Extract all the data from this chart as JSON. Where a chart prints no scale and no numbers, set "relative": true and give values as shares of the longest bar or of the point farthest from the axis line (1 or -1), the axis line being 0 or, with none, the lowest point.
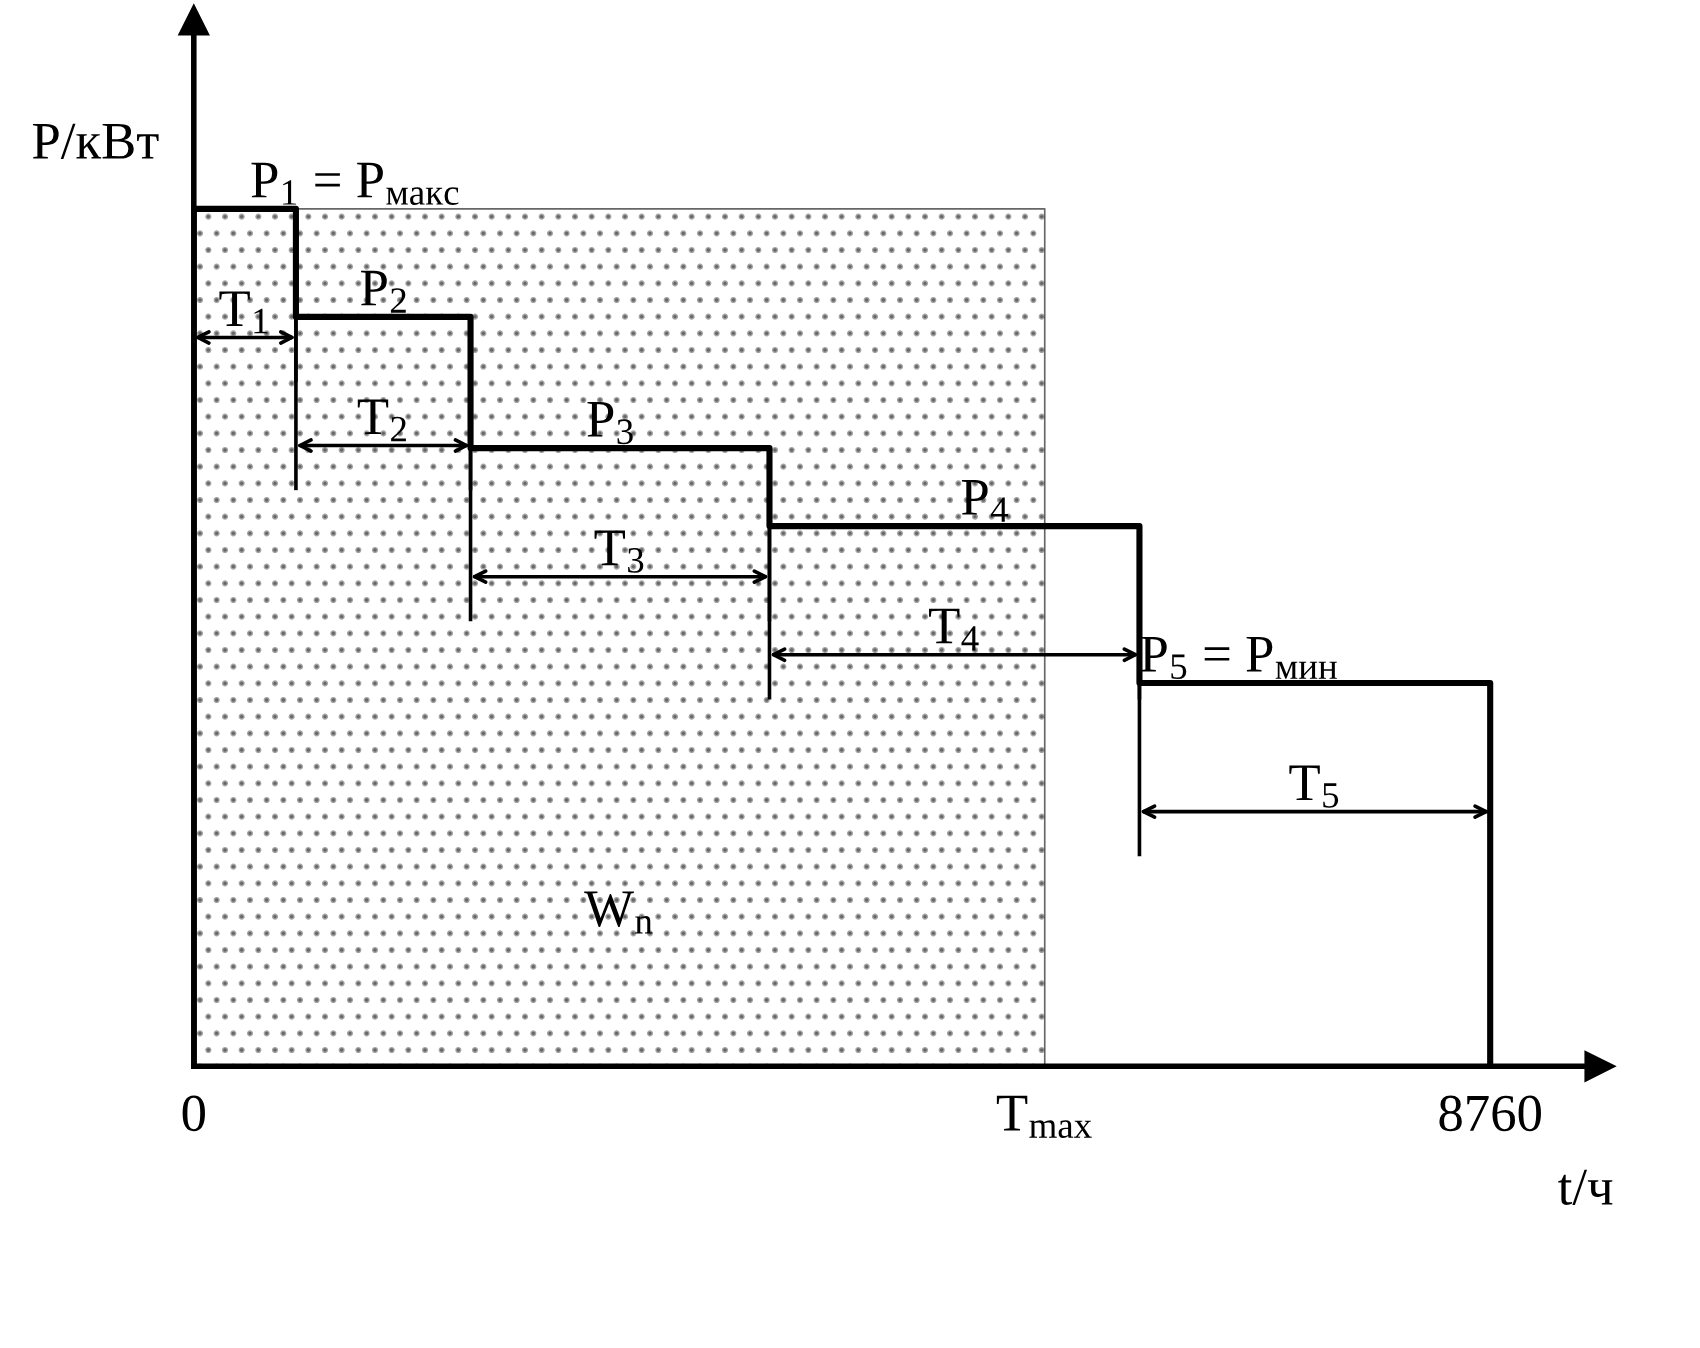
{
  "chart_data": {
    "type": "step",
    "relative": true,
    "xlabel": "t/ч",
    "ylabel": "P/кВт",
    "xlim": [
      0,
      9500
    ],
    "xticks": [
      0,
      {
        "value": 5750,
        "label": "T$_{max}$"
      },
      8760
    ],
    "series": [
      {
        "type": "area",
        "name": "W$_{n}$",
        "color": "#000000",
        "x": [
          0,
          5750
        ],
        "values": [
          1,
          1
        ]
      },
      {
        "type": "step",
        "color": "#000000",
        "x": [
          0,
          0,
          690,
          1870,
          3890,
          6390,
          8760,
          8760
        ],
        "values": [
          0,
          1,
          0.874,
          0.721,
          0.63,
          0.447,
          0.447,
          0
        ]
      }
    ],
    "annotations": [
      {
        "text": "P$_{1}$ = P$_{макс}$",
        "x": 380,
        "y": 1
      },
      {
        "text": "P$_{2}$",
        "x": 1120,
        "y": 0.874
      },
      {
        "text": "P$_{3}$",
        "x": 2650,
        "y": 0.721
      },
      {
        "text": "P$_{4}$",
        "x": 5180,
        "y": 0.63
      },
      {
        "text": "P$_{5}$ = P$_{мин}$",
        "x": 6390,
        "y": 0.447
      },
      "T$_{1}$",
      "T$_{2}$",
      "T$_{3}$",
      "T$_{4}$",
      "T$_{5}$"
    ],
    "grid": false
  }
}
